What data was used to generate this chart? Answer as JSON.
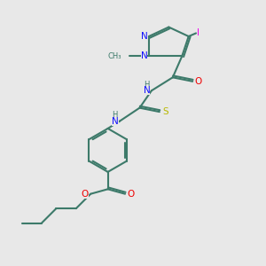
{
  "bg_color": "#e8e8e8",
  "bond_color": "#3d7a6a",
  "N_color": "#1010ff",
  "O_color": "#ee0000",
  "S_color": "#b8b800",
  "I_color": "#ee00ee",
  "lw": 1.5,
  "fs": 7.5,
  "figsize": [
    3.0,
    3.0
  ],
  "dpi": 100,
  "xlim": [
    0,
    10
  ],
  "ylim": [
    0,
    10
  ]
}
